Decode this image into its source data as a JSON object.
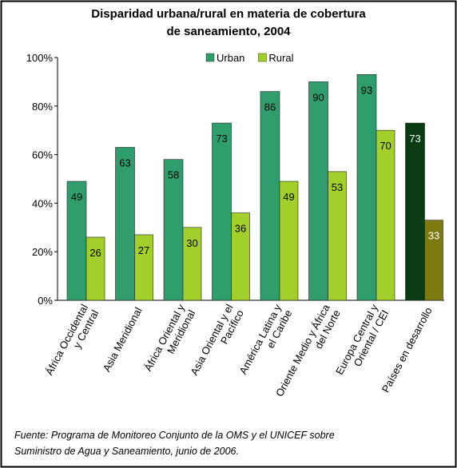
{
  "chart_data": {
    "type": "bar",
    "title": "Disparidad urbana/rural en materia de cobertura",
    "subtitle": "de saneamiento, 2004",
    "categories": [
      "África Occidental\ny Central",
      "Asia Meridional",
      "África Oriental y\nMeridional",
      "Asia Oriental y el\nPacífico",
      "América Latina y\nel Caribe",
      "Oriente Medio y África\ndel Norte",
      "Europa Central y\nOriental / CEI",
      "Países en desarrollo"
    ],
    "series": [
      {
        "name": "Urban",
        "color": "#2f9e6c",
        "values": [
          49,
          63,
          58,
          73,
          86,
          90,
          93,
          73
        ],
        "colors": [
          "#2f9e6c",
          "#2f9e6c",
          "#2f9e6c",
          "#2f9e6c",
          "#2f9e6c",
          "#2f9e6c",
          "#2f9e6c",
          "#0b3b12"
        ]
      },
      {
        "name": "Rural",
        "color": "#a3cf2a",
        "values": [
          26,
          27,
          30,
          36,
          49,
          53,
          70,
          33
        ],
        "colors": [
          "#a3cf2a",
          "#a3cf2a",
          "#a3cf2a",
          "#a3cf2a",
          "#a3cf2a",
          "#a3cf2a",
          "#a3cf2a",
          "#7d7a12"
        ]
      }
    ],
    "ylim": [
      0,
      100
    ],
    "yticks": [
      {
        "value": 0,
        "label": "0%"
      },
      {
        "value": 20,
        "label": "20%"
      },
      {
        "value": 40,
        "label": "40%"
      },
      {
        "value": 60,
        "label": "60%"
      },
      {
        "value": 80,
        "label": "80%"
      },
      {
        "value": 100,
        "label": "100%"
      }
    ],
    "grid": false,
    "legend": "top",
    "note": [
      "Fuente: Programa de Monitoreo Conjunto de la OMS y el UNICEF sobre",
      "Suministro de Agua y Saneamiento, junio de 2006."
    ]
  }
}
